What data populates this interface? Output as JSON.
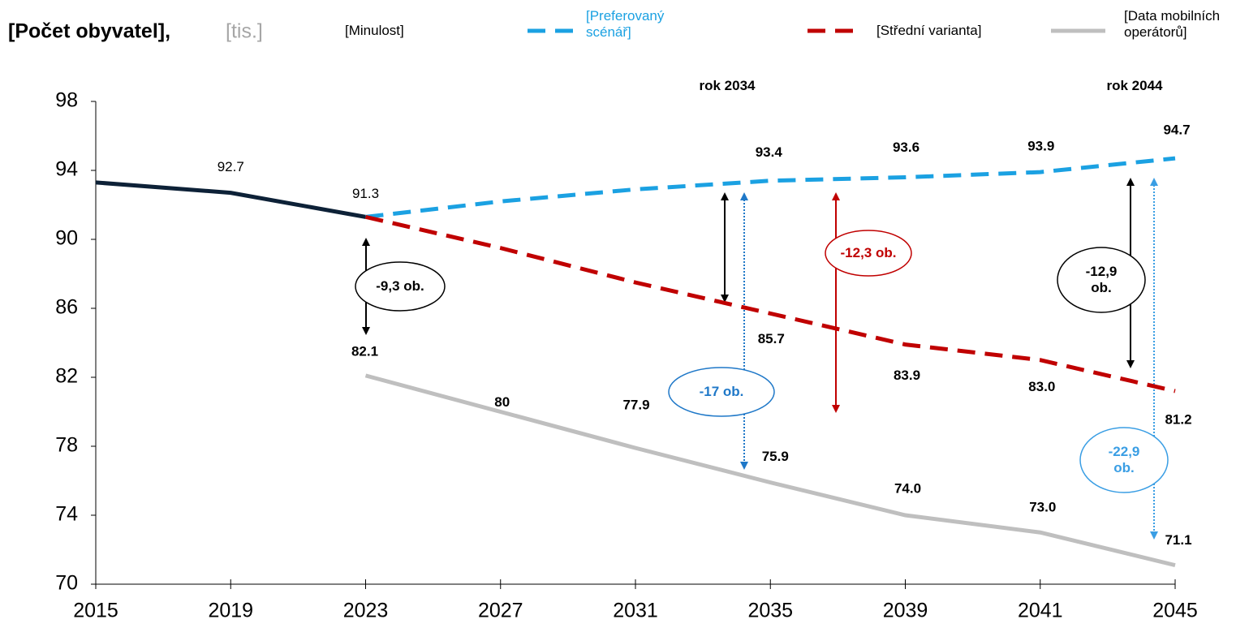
{
  "chart_data": {
    "type": "line",
    "title": "[Počet obyvatel],",
    "subtitle": "[tis.]",
    "categories": [
      "2015",
      "2019",
      "2023",
      "2027",
      "2031",
      "2035",
      "2039",
      "2041",
      "2045"
    ],
    "ylim": [
      70,
      98
    ],
    "yticks": [
      70,
      74,
      78,
      82,
      86,
      90,
      94,
      98
    ],
    "series": [
      {
        "name": "[Minulost]",
        "color": "#0d2137",
        "dashed": false,
        "values": [
          93.3,
          92.7,
          91.3,
          null,
          null,
          null,
          null,
          null,
          null
        ],
        "value_labels": [
          null,
          "92.7",
          "91.3",
          null,
          null,
          null,
          null,
          null,
          null
        ]
      },
      {
        "name": "[Preferovaný scénář]",
        "color": "#1ba1e2",
        "dashed": true,
        "values": [
          null,
          null,
          91.3,
          92.2,
          92.9,
          93.4,
          93.6,
          93.9,
          94.7
        ],
        "value_labels": [
          null,
          null,
          null,
          null,
          null,
          "93.4",
          "93.6",
          "93.9",
          "94.7"
        ]
      },
      {
        "name": "[Střední varianta]",
        "color": "#c00000",
        "dashed": true,
        "values": [
          null,
          null,
          91.3,
          89.5,
          87.5,
          85.7,
          83.9,
          83.0,
          81.2
        ],
        "value_labels": [
          null,
          null,
          null,
          null,
          null,
          "85.7",
          "83.9",
          "83.0",
          "81.2"
        ]
      },
      {
        "name": "[Data mobilních operátorů]",
        "color": "#bfbfbf",
        "dashed": false,
        "values": [
          null,
          null,
          82.1,
          80,
          77.9,
          75.9,
          74.0,
          73.0,
          71.1
        ],
        "value_labels": [
          null,
          null,
          "82.1",
          "80",
          "77.9",
          "75.9",
          "74.0",
          "73.0",
          "71.1"
        ]
      }
    ],
    "annotations": [
      "rok 2034",
      "rok 2044",
      "-9,3 ob.",
      "-17 ob.",
      "-12,3 ob.",
      "-12,9 ob.",
      "-22,9 ob."
    ]
  }
}
